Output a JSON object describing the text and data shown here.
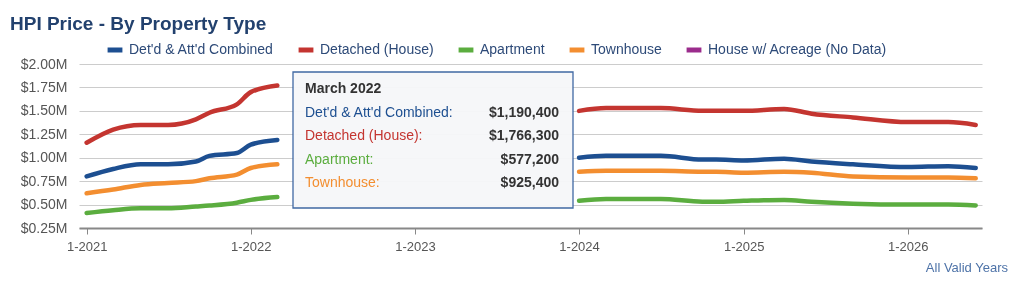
{
  "chart_data": {
    "type": "line",
    "title": "HPI Price - By Property Type",
    "x": [
      "2021-01",
      "2021-03",
      "2021-05",
      "2021-07",
      "2021-09",
      "2021-10",
      "2021-12",
      "2022-01",
      "2022-03",
      "2022-09",
      "2024-01",
      "2024-03",
      "2024-07",
      "2024-10",
      "2024-11",
      "2025-01",
      "2025-04",
      "2025-06",
      "2025-09",
      "2026-01",
      "2026-04",
      "2026-06"
    ],
    "series": [
      {
        "name": "Det'd & Att'd Combined",
        "color": "#1d4f91",
        "values": [
          0.8,
          0.88,
          0.93,
          0.93,
          0.96,
          1.02,
          1.05,
          1.14,
          1.19,
          null,
          1.0,
          1.02,
          1.02,
          0.98,
          0.98,
          0.97,
          0.99,
          0.96,
          0.93,
          0.9,
          0.91,
          0.89
        ]
      },
      {
        "name": "Detached (House)",
        "color": "#c43530",
        "values": [
          1.16,
          1.3,
          1.35,
          1.35,
          1.41,
          1.48,
          1.57,
          1.7,
          1.77,
          null,
          1.5,
          1.53,
          1.53,
          1.5,
          1.5,
          1.5,
          1.52,
          1.47,
          1.43,
          1.38,
          1.38,
          1.35
        ]
      },
      {
        "name": "Apartment",
        "color": "#5bad3f",
        "values": [
          0.41,
          0.44,
          0.46,
          0.46,
          0.48,
          0.49,
          0.52,
          0.55,
          0.58,
          null,
          0.54,
          0.56,
          0.56,
          0.53,
          0.53,
          0.54,
          0.55,
          0.53,
          0.51,
          0.5,
          0.5,
          0.49
        ]
      },
      {
        "name": "Townhouse",
        "color": "#f38e30",
        "values": [
          0.62,
          0.66,
          0.71,
          0.73,
          0.75,
          0.78,
          0.82,
          0.89,
          0.93,
          null,
          0.85,
          0.86,
          0.86,
          0.85,
          0.85,
          0.84,
          0.85,
          0.84,
          0.8,
          0.79,
          0.79,
          0.78
        ]
      },
      {
        "name": "House w/ Acreage (No Data)",
        "color": "#9b2c8c",
        "values": [
          null,
          null,
          null,
          null,
          null,
          null,
          null,
          null,
          null,
          null,
          null,
          null,
          null,
          null,
          null,
          null,
          null,
          null,
          null,
          null,
          null,
          null
        ]
      }
    ],
    "xlim": [
      "2020-12-15",
      "2026-06-15"
    ],
    "xticks": [
      {
        "value": "2021-01",
        "label": "1-2021"
      },
      {
        "value": "2022-01",
        "label": "1-2022"
      },
      {
        "value": "2023-01",
        "label": "1-2023"
      },
      {
        "value": "2024-01",
        "label": "1-2024"
      },
      {
        "value": "2025-01",
        "label": "1-2025"
      },
      {
        "value": "2026-01",
        "label": "1-2026"
      }
    ],
    "ylim": [
      0.25,
      2.0
    ],
    "yticks": [
      {
        "value": 0.25,
        "label": "$0.25M"
      },
      {
        "value": 0.5,
        "label": "$0.50M"
      },
      {
        "value": 0.75,
        "label": "$0.75M"
      },
      {
        "value": 1.0,
        "label": "$1.00M"
      },
      {
        "value": 1.25,
        "label": "$1.25M"
      },
      {
        "value": 1.5,
        "label": "$1.50M"
      },
      {
        "value": 1.75,
        "label": "$1.75M"
      },
      {
        "value": 2.0,
        "label": "$2.00M"
      }
    ],
    "grid": "y",
    "legend": "top",
    "annotations": [
      "March 2022",
      "Det'd & Att'd Combined:",
      "$1,190,400",
      "Detached (House):",
      "$1,766,300",
      "Apartment:",
      "$577,200",
      "Townhouse:",
      "$925,400",
      "All Valid Years"
    ]
  }
}
